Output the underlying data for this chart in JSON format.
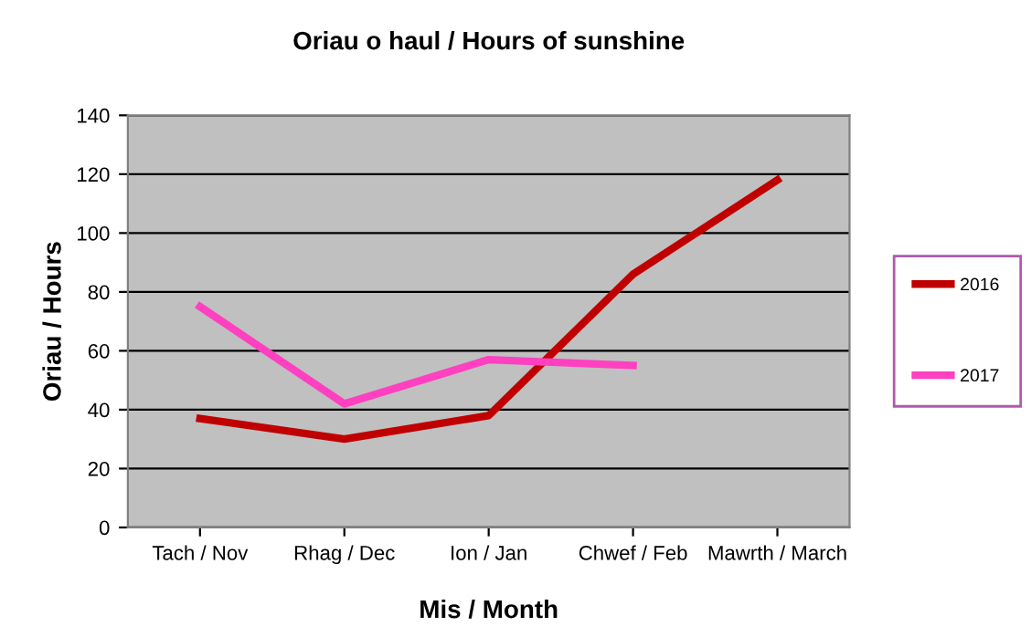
{
  "chart_data": {
    "type": "line",
    "title": "Oriau o haul / Hours of sunshine",
    "xlabel": "Mis / Month",
    "ylabel": "Oriau / Hours",
    "categories": [
      "Tach / Nov",
      "Rhag / Dec",
      "Ion / Jan",
      "Chwef / Feb",
      "Mawrth / March"
    ],
    "series": [
      {
        "name": "2016",
        "color": "#c00000",
        "values": [
          37,
          30,
          38,
          86,
          118
        ]
      },
      {
        "name": "2017",
        "color": "#ff40c0",
        "values": [
          75,
          42,
          57,
          55,
          null
        ]
      }
    ],
    "ylim": [
      0,
      140
    ],
    "yticks": [
      0,
      20,
      40,
      60,
      80,
      100,
      120,
      140
    ],
    "grid": "y",
    "legend": "right",
    "marker": "none",
    "line_style": "solid"
  }
}
